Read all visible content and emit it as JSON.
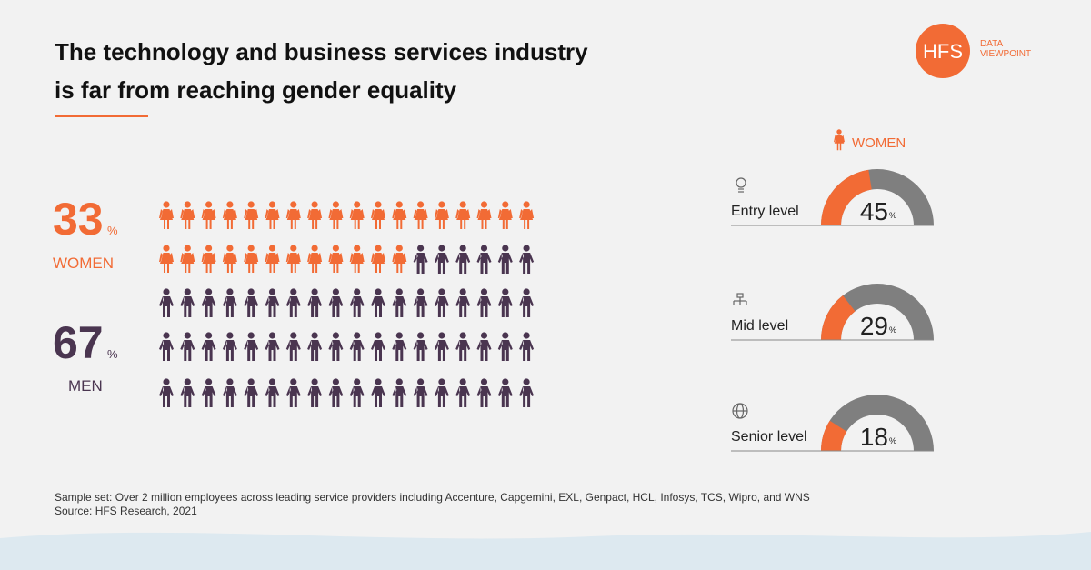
{
  "header": {
    "title": [
      "The technology and business services industry",
      "is far from reaching gender equality"
    ]
  },
  "logo": {
    "mark": "HFS",
    "lines": [
      "DATA",
      "VIEWPOINT"
    ]
  },
  "chart_data": [
    {
      "type": "pictogram",
      "series": [
        {
          "name": "WOMEN",
          "value": 33,
          "unit": "%",
          "color": "#f26b35"
        },
        {
          "name": "MEN",
          "value": 67,
          "unit": "%",
          "color": "#4a3550"
        }
      ],
      "ylim": [
        0,
        100
      ]
    },
    {
      "type": "gauge",
      "legend": "WOMEN",
      "color": "#f26b35",
      "track_color": "#7f7f7f",
      "categories": [
        "Entry level",
        "Mid level",
        "Senior level"
      ],
      "values": [
        45,
        29,
        18
      ],
      "unit": "%",
      "ylim": [
        0,
        100
      ]
    }
  ],
  "footnote": [
    "Sample set: Over 2 million employees across leading service providers including Accenture, Capgemini, EXL, Genpact, HCL, Infosys, TCS, Wipro, and WNS",
    "Source: HFS Research, 2021"
  ]
}
